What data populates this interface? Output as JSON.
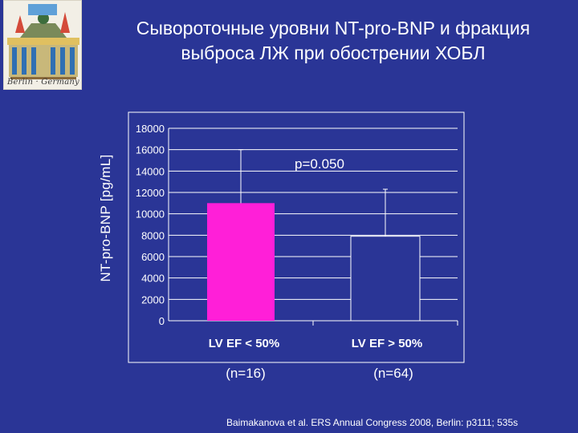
{
  "slide": {
    "title_line1": "Сывороточные уровни NT-pro-BNP и фракция",
    "title_line2": "выброса ЛЖ при обострении ХОБЛ",
    "logo_caption": "Berlin · Germany",
    "footer": "Baimakanova et al. ERS Annual Congress 2008, Berlin: p3111; 535s"
  },
  "colors": {
    "background": "#2a3596",
    "plot_area": "#2a3596",
    "bar1": "#ff1fd8",
    "gridline": "#ffffff",
    "text": "#ffffff"
  },
  "chart_data": {
    "type": "bar",
    "ylabel": "NT-pro-BNP [pg/mL]",
    "xlabel": "",
    "ylim": [
      0,
      18000
    ],
    "yticks": [
      "0",
      "2000",
      "4000",
      "6000",
      "8000",
      "10000",
      "12000",
      "14000",
      "16000",
      "18000"
    ],
    "categories": [
      "LV EF < 50%",
      "LV EF > 50%"
    ],
    "counts": [
      "(n=16)",
      "(n=64)"
    ],
    "values": [
      11000,
      7900
    ],
    "error_upper": [
      16000,
      12300
    ],
    "annotation": "p=0.050",
    "grid": true
  }
}
